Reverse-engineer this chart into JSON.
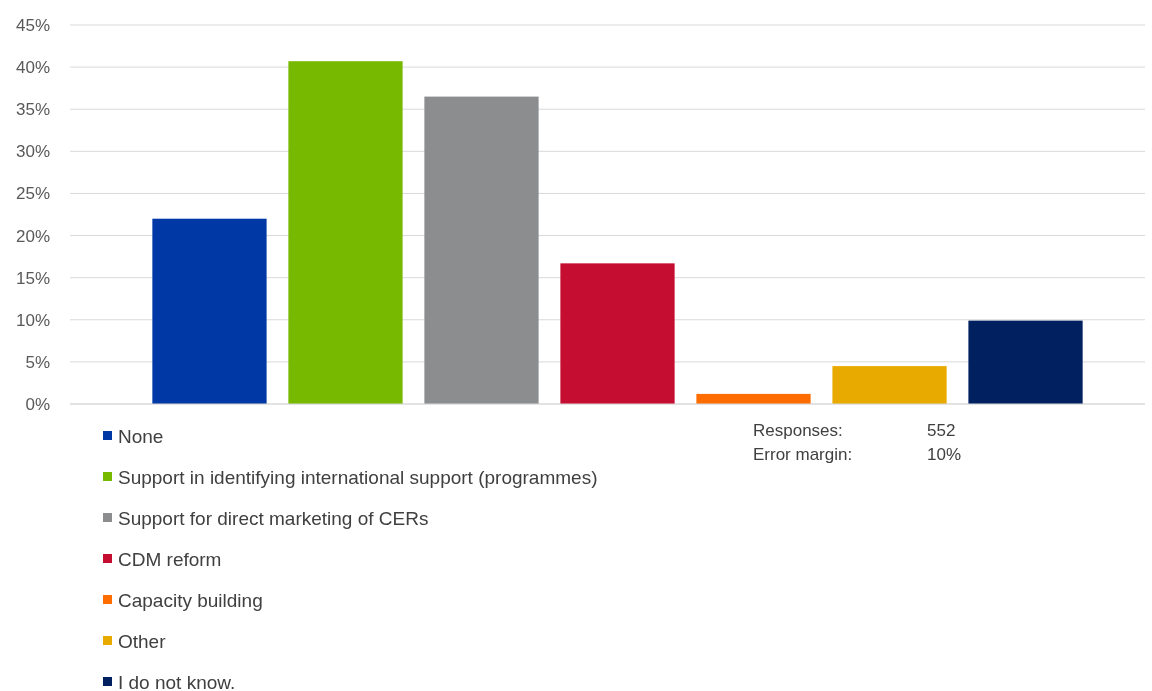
{
  "chart_data": {
    "type": "bar",
    "categories": [
      null
    ],
    "series": [
      {
        "name": "None",
        "color": "#0039a6",
        "values": [
          22.0
        ]
      },
      {
        "name": "Support in identifying international support (programmes)",
        "color": "#77b900",
        "values": [
          40.7
        ]
      },
      {
        "name": "Support for direct marketing of CERs",
        "color": "#8c8d8f",
        "values": [
          36.5
        ]
      },
      {
        "name": "CDM reform",
        "color": "#c50d32",
        "values": [
          16.7
        ]
      },
      {
        "name": "Capacity building",
        "color": "#ff6d00",
        "values": [
          1.2
        ]
      },
      {
        "name": "Other",
        "color": "#e9aa00",
        "values": [
          4.5
        ]
      },
      {
        "name": "I do not know.",
        "color": "#002060",
        "values": [
          9.9
        ]
      }
    ],
    "ylim": [
      0,
      45
    ],
    "yticks": [
      {
        "value": 0,
        "label": "0%"
      },
      {
        "value": 5,
        "label": "5%"
      },
      {
        "value": 10,
        "label": "10%"
      },
      {
        "value": 15,
        "label": "15%"
      },
      {
        "value": 20,
        "label": "20%"
      },
      {
        "value": 25,
        "label": "25%"
      },
      {
        "value": 30,
        "label": "30%"
      },
      {
        "value": 35,
        "label": "35%"
      },
      {
        "value": 40,
        "label": "40%"
      },
      {
        "value": 45,
        "label": "45%"
      }
    ],
    "grid": "y",
    "legend": "bottom",
    "annotations": [
      "Responses:",
      "552",
      "Error margin:",
      "10%"
    ]
  }
}
